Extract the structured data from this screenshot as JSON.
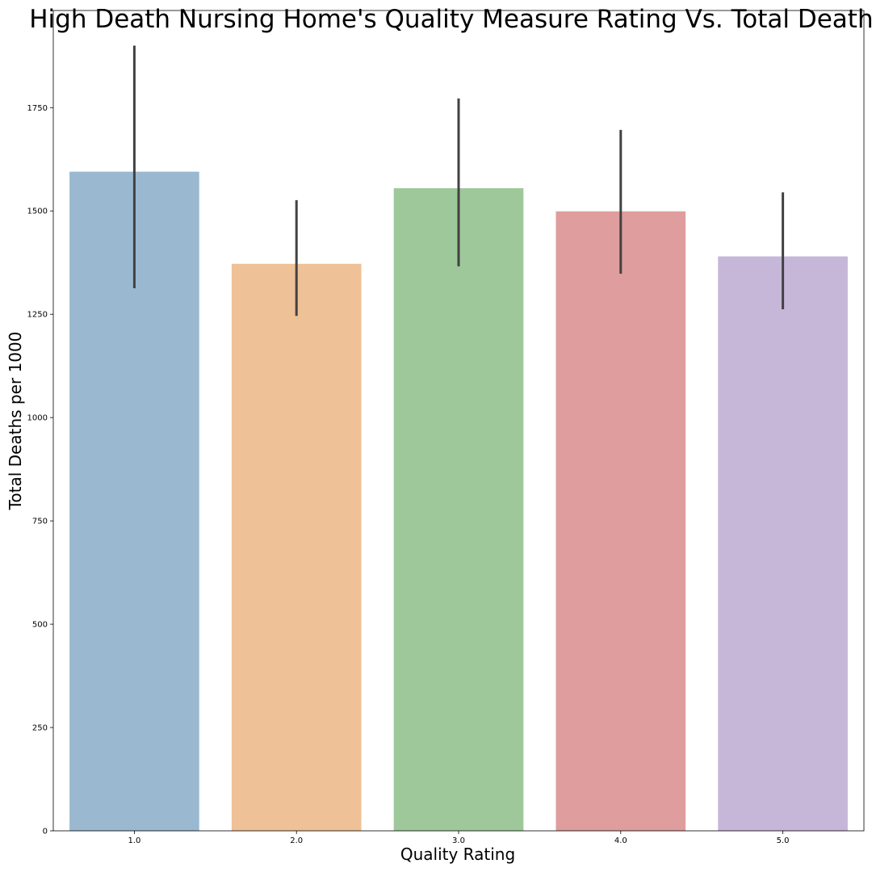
{
  "chart_data": {
    "type": "bar",
    "title": "High Death Nursing Home's Quality Measure Rating Vs. Total Deaths",
    "xlabel": "Quality Rating",
    "ylabel": "Total Deaths per 1000",
    "categories": [
      "1.0",
      "2.0",
      "3.0",
      "4.0",
      "5.0"
    ],
    "values": [
      1595,
      1372,
      1555,
      1499,
      1390
    ],
    "error_low": [
      1313,
      1246,
      1366,
      1348,
      1262
    ],
    "error_high": [
      1900,
      1526,
      1772,
      1696,
      1545
    ],
    "colors": [
      "#9ab9d0",
      "#efc196",
      "#9ec899",
      "#df9d9d",
      "#c6b7d9"
    ],
    "error_color": "#424242",
    "ylim": [
      0,
      1985
    ],
    "yticks": [
      0,
      250,
      500,
      750,
      1000,
      1250,
      1500,
      1750
    ],
    "grid": false,
    "legend": "none"
  }
}
